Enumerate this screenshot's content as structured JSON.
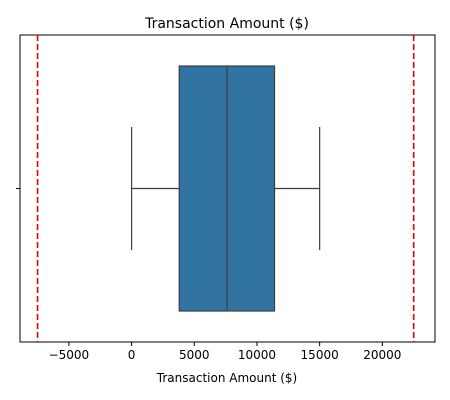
{
  "chart_data": {
    "type": "box",
    "title": "Transaction Amount ($)",
    "xlabel": "Transaction Amount ($)",
    "ylabel": "",
    "xlim": [
      -8900,
      24200
    ],
    "xticks": [
      -5000,
      0,
      5000,
      10000,
      15000,
      20000
    ],
    "tick_labels": [
      "−5000",
      "0",
      "5000",
      "10000",
      "15000",
      "20000"
    ],
    "box": {
      "whisker_low": 0,
      "q1": 3800,
      "median": 7600,
      "q3": 11400,
      "whisker_high": 15000
    },
    "reference_lines": [
      -7500,
      22500
    ],
    "colors": {
      "box_fill": "#3274a1",
      "box_edge": "#3d3d3d",
      "reference_line": "#e8000b"
    },
    "grid": false
  }
}
